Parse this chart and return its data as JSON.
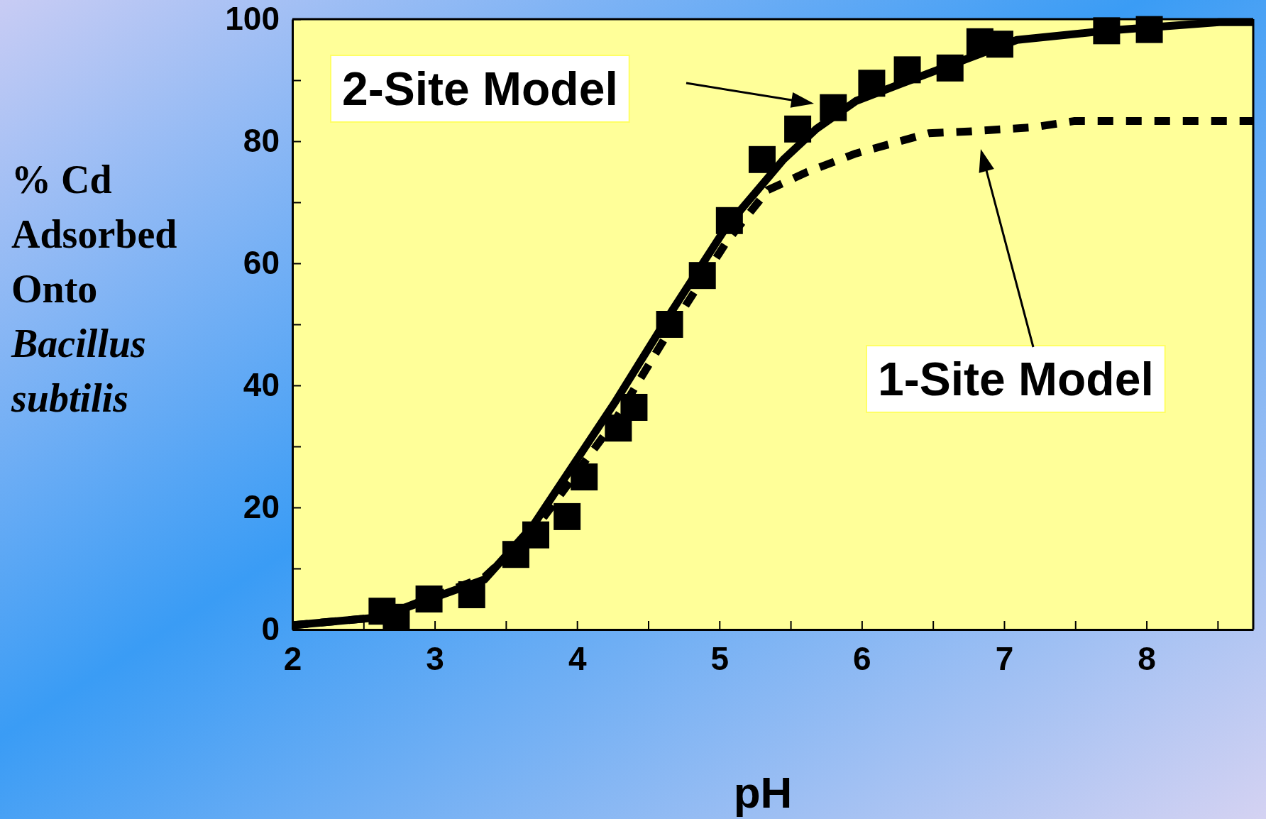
{
  "chart_data": {
    "type": "scatter",
    "xlabel": "pH",
    "ylabel": "% Cd Adsorbed Onto Bacillus subtilis",
    "xlim": [
      2,
      8.75
    ],
    "ylim": [
      0,
      100
    ],
    "xticks": [
      2,
      {
        "value": 2.5,
        "label": null
      },
      3,
      {
        "value": 3.5,
        "label": null
      },
      4,
      {
        "value": 4.5,
        "label": null
      },
      5,
      {
        "value": 5.5,
        "label": null
      },
      6,
      {
        "value": 6.5,
        "label": null
      },
      7,
      {
        "value": 7.5,
        "label": null
      },
      8,
      {
        "value": 8.5,
        "label": null
      }
    ],
    "yticks": [
      0,
      {
        "value": 10,
        "label": null
      },
      20,
      {
        "value": 30,
        "label": null
      },
      40,
      {
        "value": 50,
        "label": null
      },
      60,
      {
        "value": 70,
        "label": null
      },
      80,
      {
        "value": 90,
        "label": null
      },
      100
    ],
    "series": [
      {
        "type": "line",
        "line_style": "dashed",
        "color": "#000000",
        "x": [
          2,
          2.61,
          3.35,
          3.69,
          4.26,
          4.65,
          5.05,
          5.34,
          5.62,
          5.96,
          6.47,
          6.75,
          7.21,
          7.49,
          8.75
        ],
        "values": [
          0.7,
          2.0,
          8.6,
          16,
          34,
          49,
          63.5,
          72,
          75,
          78,
          81.3,
          81.6,
          82.3,
          83.3,
          83.3
        ]
      },
      {
        "type": "line",
        "line_style": "solid",
        "color": "#000000",
        "x": [
          2,
          2.61,
          3.35,
          3.69,
          4.26,
          4.65,
          5.05,
          5.45,
          5.68,
          5.96,
          6.41,
          7.09,
          7.72,
          8.51,
          8.75
        ],
        "values": [
          0.7,
          2.0,
          8.2,
          17,
          37,
          51.6,
          66,
          77,
          82,
          86.6,
          90.6,
          96.6,
          98.1,
          99.5,
          99.5
        ]
      },
      {
        "type": "scatter",
        "marker": "square",
        "color": "#000000",
        "x": [
          2.63,
          2.73,
          2.96,
          3.26,
          3.57,
          3.71,
          3.93,
          4.05,
          4.29,
          4.4,
          4.65,
          4.88,
          5.07,
          5.3,
          5.55,
          5.8,
          6.07,
          6.32,
          6.62,
          6.83,
          6.97,
          7.72,
          8.02
        ],
        "values": [
          3.0,
          2.0,
          5.0,
          5.7,
          12.3,
          15.5,
          18.5,
          25,
          33,
          36.4,
          50,
          58,
          67,
          77,
          82,
          85.5,
          89.5,
          91.7,
          92,
          96.3,
          95.9,
          98.1,
          98.3
        ]
      }
    ],
    "annotations": [
      "2-Site Model",
      "1-Site Model"
    ]
  }
}
